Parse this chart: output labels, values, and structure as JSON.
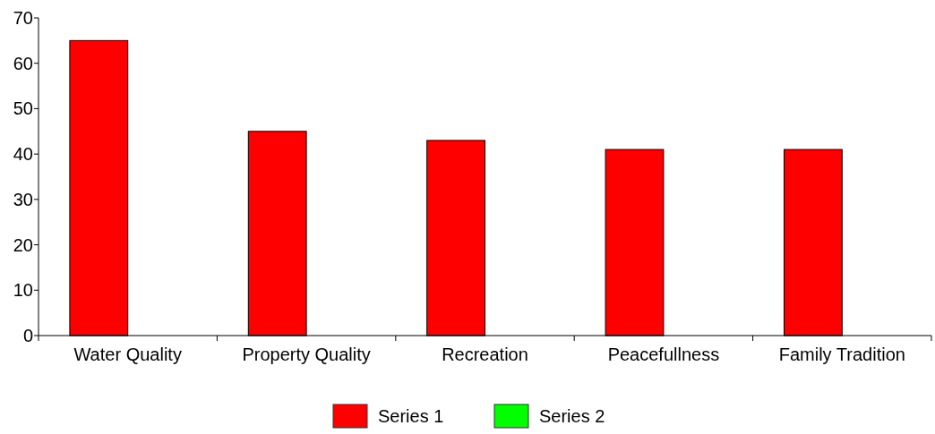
{
  "chart_data": {
    "type": "bar",
    "categories": [
      "Water Quality",
      "Property Quality",
      "Recreation",
      "Peacefullness",
      "Family Tradition"
    ],
    "series": [
      {
        "name": "Series 1",
        "color": "#ff0000",
        "values": [
          65,
          45,
          43,
          41,
          41
        ]
      },
      {
        "name": "Series 2",
        "color": "#00ff00",
        "values": [
          null,
          null,
          null,
          null,
          null
        ]
      }
    ],
    "ylim": [
      0,
      70
    ],
    "yticks": [
      0,
      10,
      20,
      30,
      40,
      50,
      60,
      70
    ],
    "grid": false,
    "legend": "bottom"
  }
}
